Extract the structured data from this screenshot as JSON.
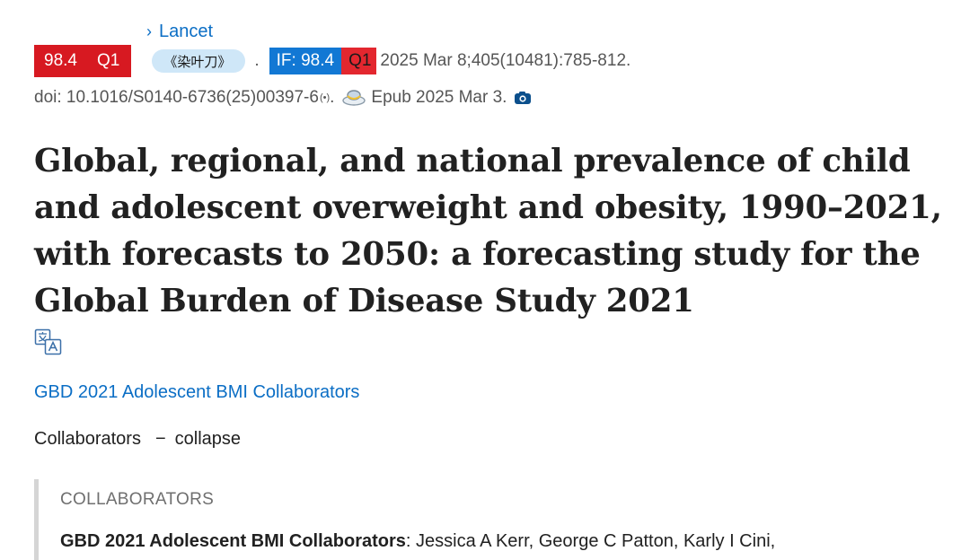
{
  "journal": {
    "name": "Lancet",
    "chevron": "›"
  },
  "badges": {
    "impact": "98.4",
    "quartile": "Q1",
    "tag": "《染叶刀》",
    "separator": ".",
    "if_label": "IF: 98.4",
    "if_quartile": "Q1"
  },
  "citation": {
    "date_volume": "2025 Mar 8;405(10481):785-812.",
    "doi": "doi: 10.1016/S0140-6736(25)00397-6",
    "doi_suffix": "(•)",
    "doi_end": ".",
    "epub": "Epub 2025 Mar 3."
  },
  "article": {
    "title": "Global, regional, and national prevalence of child and adolescent overweight and obesity, 1990–2021, with forecasts to 2050: a forecasting study for the Global Burden of Disease Study 2021"
  },
  "authors": {
    "group_link": "GBD 2021 Adolescent BMI Collaborators"
  },
  "collaborators": {
    "label": "Collaborators",
    "dash": "−",
    "toggle": "collapse",
    "heading": "COLLABORATORS",
    "group_name": "GBD 2021 Adolescent BMI Collaborators",
    "names": ": Jessica A Kerr, George C Patton, Karly I Cini,"
  },
  "icons": {
    "journal_chevron": "chevron-right-icon",
    "doi": "broadcast-icon",
    "save": "disk-icon",
    "camera": "camera-icon",
    "translate": "translate-icon"
  },
  "colors": {
    "link": "#0b6ec5",
    "badge_red": "#d71921",
    "if_blue": "#1278d4",
    "tag_bg": "#cfe7f8"
  }
}
